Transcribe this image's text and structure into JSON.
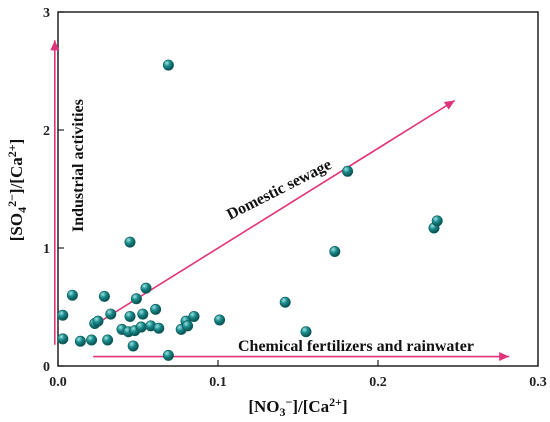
{
  "chart_data": {
    "type": "scatter",
    "xlim": [
      0,
      0.3
    ],
    "ylim": [
      0,
      3
    ],
    "x_ticks": [
      0.0,
      0.1,
      0.2,
      0.3
    ],
    "x_tick_labels": [
      "0.0",
      "0.1",
      "0.2",
      "0.3"
    ],
    "y_ticks": [
      0,
      1,
      2,
      3
    ],
    "y_tick_labels": [
      "0",
      "1",
      "2",
      "3"
    ],
    "grid": false,
    "xlabel": "[NO3−]/[Ca2+]",
    "ylabel": "[SO42−]/[Ca2+]",
    "point_color": "#1a8c8c",
    "arrow_color": "#e0337a",
    "annotations": {
      "industrial": "Industrial activities",
      "domestic": "Domestic sewage",
      "chemical": "Chemical fertilizers and rainwater"
    },
    "arrows": [
      {
        "name": "industrial",
        "from": [
          -0.002,
          0.18
        ],
        "to": [
          -0.002,
          2.76
        ]
      },
      {
        "name": "domestic",
        "from": [
          0.022,
          0.34
        ],
        "to": [
          0.248,
          2.25
        ]
      },
      {
        "name": "chemical",
        "from": [
          0.022,
          0.08
        ],
        "to": [
          0.282,
          0.08
        ]
      }
    ],
    "points": [
      {
        "x": 0.003,
        "y": 0.43
      },
      {
        "x": 0.003,
        "y": 0.23
      },
      {
        "x": 0.009,
        "y": 0.6
      },
      {
        "x": 0.014,
        "y": 0.21
      },
      {
        "x": 0.021,
        "y": 0.22
      },
      {
        "x": 0.023,
        "y": 0.36
      },
      {
        "x": 0.025,
        "y": 0.38
      },
      {
        "x": 0.029,
        "y": 0.59
      },
      {
        "x": 0.031,
        "y": 0.22
      },
      {
        "x": 0.033,
        "y": 0.44
      },
      {
        "x": 0.04,
        "y": 0.31
      },
      {
        "x": 0.044,
        "y": 0.29
      },
      {
        "x": 0.045,
        "y": 0.42
      },
      {
        "x": 0.045,
        "y": 1.05
      },
      {
        "x": 0.047,
        "y": 0.17
      },
      {
        "x": 0.048,
        "y": 0.3
      },
      {
        "x": 0.049,
        "y": 0.57
      },
      {
        "x": 0.052,
        "y": 0.33
      },
      {
        "x": 0.053,
        "y": 0.44
      },
      {
        "x": 0.055,
        "y": 0.66
      },
      {
        "x": 0.058,
        "y": 0.34
      },
      {
        "x": 0.061,
        "y": 0.48
      },
      {
        "x": 0.063,
        "y": 0.32
      },
      {
        "x": 0.069,
        "y": 2.55
      },
      {
        "x": 0.069,
        "y": 0.09
      },
      {
        "x": 0.077,
        "y": 0.31
      },
      {
        "x": 0.08,
        "y": 0.38
      },
      {
        "x": 0.081,
        "y": 0.34
      },
      {
        "x": 0.085,
        "y": 0.42
      },
      {
        "x": 0.101,
        "y": 0.39
      },
      {
        "x": 0.142,
        "y": 0.54
      },
      {
        "x": 0.155,
        "y": 0.29
      },
      {
        "x": 0.173,
        "y": 0.97
      },
      {
        "x": 0.181,
        "y": 1.65
      },
      {
        "x": 0.235,
        "y": 1.17
      },
      {
        "x": 0.237,
        "y": 1.23
      }
    ]
  }
}
